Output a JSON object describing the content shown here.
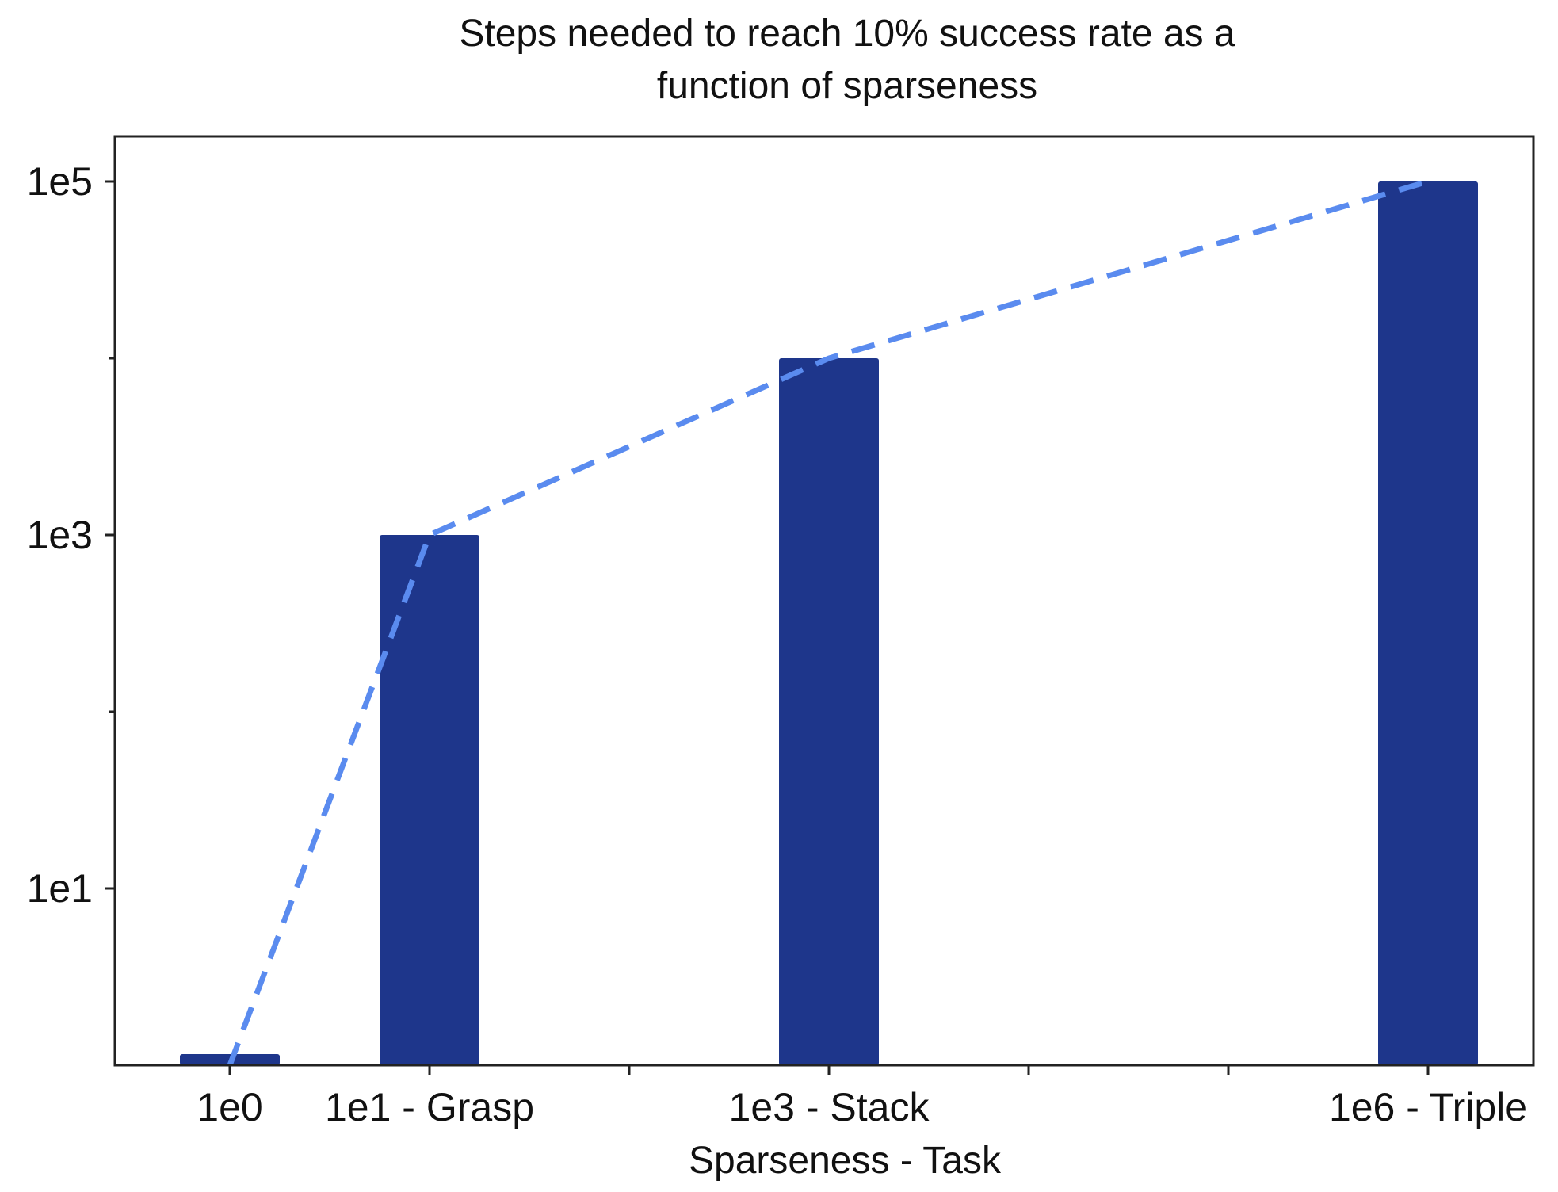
{
  "chart_data": {
    "type": "bar",
    "title_lines": [
      "Steps needed to reach 10% success rate as a",
      "function of sparseness"
    ],
    "xlabel": "Sparseness - Task",
    "ylabel": "",
    "yscale": "log",
    "ylim": [
      1,
      200000
    ],
    "yticks": [
      {
        "value": 10,
        "label": "1e1"
      },
      {
        "value": 1000,
        "label": "1e3"
      },
      {
        "value": 100000,
        "label": "1e5"
      }
    ],
    "yminor_ticks": [
      100,
      10000
    ],
    "x_domain": [
      -0.5,
      6.5
    ],
    "xticks": [
      {
        "x": 0,
        "label": "1e0"
      },
      {
        "x": 1,
        "label": "1e1 - Grasp"
      },
      {
        "x": 2,
        "label": ""
      },
      {
        "x": 3,
        "label": "1e3 - Stack"
      },
      {
        "x": 4,
        "label": ""
      },
      {
        "x": 5,
        "label": ""
      },
      {
        "x": 6,
        "label": "1e6 - Triple"
      }
    ],
    "bars": [
      {
        "x": 0,
        "value": 1,
        "label": "1e0"
      },
      {
        "x": 1,
        "value": 1000,
        "label": "1e1 - Grasp"
      },
      {
        "x": 3,
        "value": 10000,
        "label": "1e3 - Stack"
      },
      {
        "x": 6,
        "value": 100000,
        "label": "1e6 - Triple"
      }
    ],
    "trend_line": {
      "style": "dashed",
      "points": [
        {
          "x": 0,
          "y": 1
        },
        {
          "x": 1,
          "y": 1000
        },
        {
          "x": 3,
          "y": 10000
        },
        {
          "x": 6,
          "y": 100000
        }
      ]
    },
    "colors": {
      "bar": "#1e368b",
      "line": "#5a8bef",
      "axis": "#222222"
    }
  }
}
